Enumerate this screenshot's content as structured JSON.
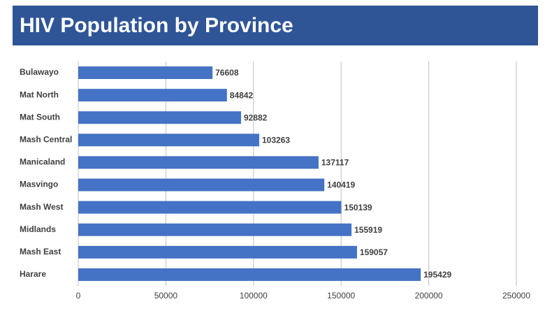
{
  "chart_data": {
    "type": "bar",
    "orientation": "horizontal",
    "title": "HIV Population by Province",
    "categories": [
      "Bulawayo",
      "Mat North",
      "Mat South",
      "Mash Central",
      "Manicaland",
      "Masvingo",
      "Mash West",
      "Midlands",
      "Mash East",
      "Harare"
    ],
    "values": [
      76608,
      84842,
      92882,
      103263,
      137117,
      140419,
      150139,
      155919,
      159057,
      195429
    ],
    "color": "#4472c4",
    "xlim": [
      0,
      250000
    ],
    "xticks": [
      0,
      50000,
      100000,
      150000,
      200000,
      250000
    ],
    "grid": true
  }
}
